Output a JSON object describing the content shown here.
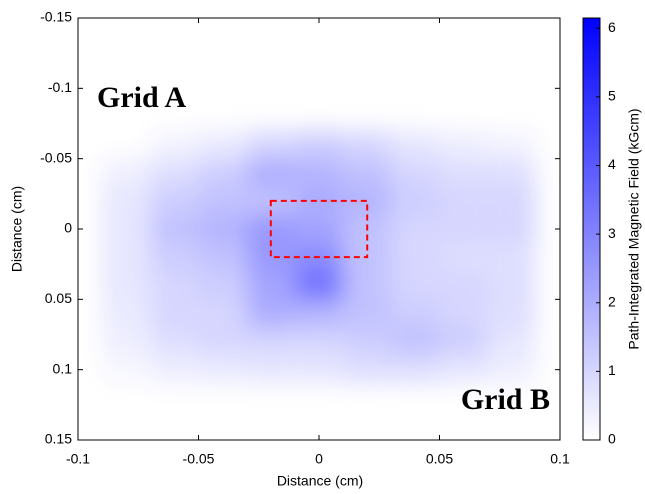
{
  "chart_data": {
    "type": "heatmap",
    "x_label": "Distance (cm)",
    "y_label": "Distance (cm)",
    "colorbar_label": "Path-Integrated Magnetic Field (kGcm)",
    "xlim": [
      -0.1,
      0.1
    ],
    "xticks": [
      -0.1,
      -0.05,
      0,
      0.05,
      0.1
    ],
    "ylim": [
      -0.15,
      0.15
    ],
    "yticks": [
      -0.15,
      -0.1,
      -0.05,
      0,
      0.05,
      0.1,
      0.15
    ],
    "y_inverted": true,
    "clim": [
      0,
      6.15
    ],
    "cticks": [
      0,
      1,
      2,
      3,
      4,
      5,
      6
    ],
    "color": "#0000ff",
    "x": [
      -0.08,
      -0.06,
      -0.04,
      -0.02,
      0,
      0.02,
      0.04,
      0.06,
      0.08
    ],
    "y": [
      -0.06,
      -0.04,
      -0.02,
      0,
      0.02,
      0.04,
      0.06,
      0.08,
      0.1
    ],
    "z": [
      [
        0,
        0.3,
        0.5,
        1.0,
        1.2,
        1.0,
        0.6,
        0.4,
        0.3
      ],
      [
        0.4,
        0.8,
        1.2,
        2.0,
        1.8,
        1.5,
        1.0,
        0.8,
        0.8
      ],
      [
        0.6,
        1.2,
        1.5,
        1.5,
        2.0,
        1.8,
        1.2,
        1.0,
        1.0
      ],
      [
        0.6,
        1.5,
        1.8,
        2.5,
        2.2,
        1.5,
        1.0,
        1.0,
        1.0
      ],
      [
        0.6,
        1.2,
        1.5,
        2.5,
        2.8,
        1.5,
        1.0,
        0.8,
        0.8
      ],
      [
        0.6,
        1.0,
        1.2,
        2.2,
        3.5,
        1.5,
        1.0,
        1.0,
        0.8
      ],
      [
        0.5,
        1.0,
        1.0,
        2.0,
        1.8,
        1.5,
        1.2,
        1.0,
        0.8
      ],
      [
        0.4,
        0.8,
        1.0,
        1.0,
        1.0,
        1.2,
        1.5,
        1.2,
        0.6
      ],
      [
        0.2,
        0.4,
        0.5,
        0.6,
        0.6,
        0.8,
        0.8,
        0.6,
        0.4
      ]
    ],
    "highlight_box": {
      "xlim": [
        -0.02,
        0.02
      ],
      "ylim": [
        -0.02,
        0.02
      ],
      "color": "#ff0000"
    },
    "annotations": [
      "Grid A",
      "Grid B"
    ]
  }
}
